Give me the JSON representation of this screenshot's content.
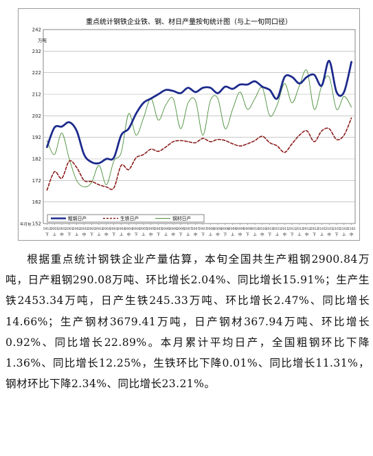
{
  "chart_data": {
    "type": "line",
    "title": "重点统计钢铁企业铁、钢、材日产量按旬统计图（与上一旬同口径）",
    "unit_label": "万吨",
    "date_caption": "年月旬",
    "ylim": [
      152,
      242
    ],
    "yticks": [
      152,
      162,
      172,
      182,
      192,
      202,
      212,
      222,
      232,
      242
    ],
    "grid": true,
    "legend_position": "bottom-left",
    "x_months": [
      "1912",
      "2001",
      "2001",
      "2001",
      "2002",
      "2002",
      "2002",
      "2003",
      "2003",
      "2003",
      "2004",
      "2004",
      "2004",
      "2005",
      "2005",
      "2005",
      "2006",
      "2006",
      "2006",
      "2007",
      "2007",
      "2007",
      "2008",
      "2008",
      "2008",
      "2009",
      "2009",
      "2009",
      "2010",
      "2010",
      "2010",
      "2011",
      "2011",
      "2011",
      "2012",
      "2012",
      "2012",
      "2101",
      "2101",
      "2101",
      "2102",
      "2102"
    ],
    "x_periods": [
      "下",
      "上",
      "中",
      "下",
      "上",
      "中",
      "下",
      "上",
      "中",
      "下",
      "上",
      "中",
      "下",
      "上",
      "中",
      "下",
      "上",
      "中",
      "下",
      "上",
      "中",
      "下",
      "上",
      "中",
      "下",
      "上",
      "中",
      "下",
      "上",
      "中",
      "下",
      "上",
      "中",
      "下",
      "上",
      "中",
      "下",
      "上",
      "中",
      "下",
      "上",
      "中"
    ],
    "series": [
      {
        "name": "粗钢日产",
        "color": "#1c2a8c",
        "style": "solid-thick",
        "values": [
          187.5,
          196.5,
          197,
          199,
          195,
          184,
          180.5,
          180,
          182,
          182.5,
          193,
          196,
          203,
          208,
          210,
          212,
          214,
          213.5,
          212.5,
          215,
          213,
          215,
          215,
          212.5,
          215.5,
          214.5,
          216.5,
          216.5,
          218,
          215.5,
          214,
          210,
          220,
          220,
          217,
          220,
          221,
          216,
          227.5,
          213,
          213,
          227
        ]
      },
      {
        "name": "生铁日产",
        "color": "#8b1a1a",
        "style": "dashed",
        "values": [
          167.5,
          176,
          173,
          181,
          178,
          172,
          171.5,
          170,
          169,
          168.5,
          179,
          177,
          182.5,
          184,
          186.5,
          185.5,
          187.5,
          190,
          190.5,
          190,
          189.5,
          191.5,
          190,
          191,
          190.5,
          189,
          188,
          189,
          190.5,
          192.5,
          189.5,
          188,
          185,
          189,
          193,
          195,
          190,
          195,
          196,
          191,
          193,
          201
        ]
      },
      {
        "name": "钢材日产",
        "color": "#4a8f3a",
        "style": "solid-thin",
        "values": [
          190.5,
          184,
          194,
          182,
          172,
          169,
          171,
          179,
          170,
          181,
          185,
          203,
          193,
          201,
          210,
          200,
          207,
          210,
          196,
          208,
          209,
          193,
          209,
          210,
          196,
          205,
          213,
          205,
          210,
          215,
          202,
          207,
          217,
          208,
          216,
          223,
          205,
          216,
          220,
          205,
          211,
          206
        ]
      }
    ]
  },
  "article": {
    "text": "根据重点统计钢铁企业产量估算，本旬全国共生产粗钢2900.84万吨，日产粗钢290.08万吨、环比增长2.04%、同比增长15.91%；生产生铁2453.34万吨，日产生铁245.33万吨、环比增长2.47%、同比增长14.66%；生产钢材3679.41万吨，日产钢材367.94万吨、环比增长0.92%、同比增长22.89%。本月累计平均日产，全国粗钢环比下降1.36%、同比增长12.25%，生铁环比下降0.01%、同比增长11.31%，钢材环比下降2.34%、同比增长23.21%。"
  }
}
